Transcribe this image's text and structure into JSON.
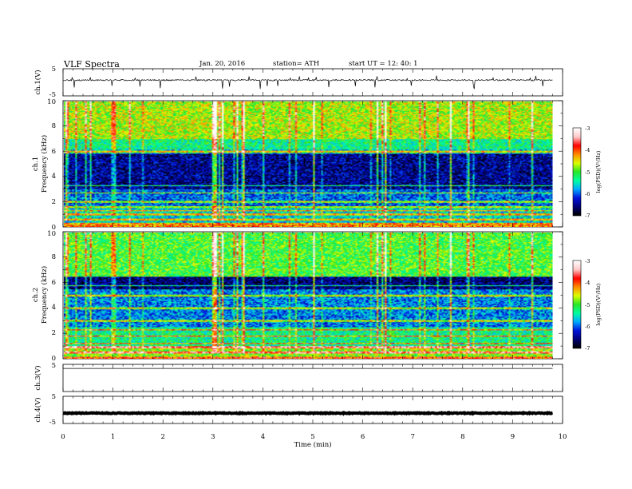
{
  "header": {
    "title": "VLF  Spectra",
    "date": "Jan. 20, 2016",
    "station": "station= ATH",
    "start": "start  UT  =    12: 40: 1"
  },
  "chart_data": [
    {
      "type": "line",
      "name": "ch1-waveform",
      "ylabel": "ch.1(V)",
      "ylim": [
        -5,
        5
      ],
      "y_ticks": [
        "5",
        "-5"
      ],
      "baseline_v": 0.8,
      "noise_v": 0.25,
      "spikes_v": [
        -2.5,
        2.5
      ]
    },
    {
      "type": "heatmap",
      "name": "ch1-spectrogram",
      "ylabel": "ch.1\nFrequency (kHz)",
      "ylabel_lines": [
        "ch.1",
        "Frequency (kHz)"
      ],
      "ylim": [
        0,
        10
      ],
      "y_ticks": [
        "0",
        "2",
        "4",
        "6",
        "8",
        "10"
      ],
      "band_profile_log_psd": [
        {
          "f_khz": [
            0,
            0.3
          ],
          "level": -4.2
        },
        {
          "f_khz": [
            0.3,
            1.5
          ],
          "level": -5.6
        },
        {
          "f_khz": [
            1.5,
            3.0
          ],
          "level": -6.0
        },
        {
          "f_khz": [
            3.0,
            5.8
          ],
          "level": -6.5
        },
        {
          "f_khz": [
            5.8,
            6.2
          ],
          "level": -5.7
        },
        {
          "f_khz": [
            6.2,
            7.0
          ],
          "level": -5.3
        },
        {
          "f_khz": [
            7.0,
            10.0
          ],
          "level": -4.7
        }
      ],
      "tones_khz": [
        0.6,
        1.0,
        1.3,
        1.6,
        2.0,
        2.7,
        3.3,
        6.0
      ],
      "colorbar": {
        "label": "log(PSD)(V²/Hz)",
        "ticks": [
          "-3",
          "-4",
          "-5",
          "-6",
          "-7"
        ],
        "range": [
          -7,
          -3
        ]
      }
    },
    {
      "type": "heatmap",
      "name": "ch2-spectrogram",
      "ylabel": "ch.2\nFrequency (kHz)",
      "ylabel_lines": [
        "ch.2",
        "Frequency (kHz)"
      ],
      "ylim": [
        0,
        10
      ],
      "y_ticks": [
        "0",
        "2",
        "4",
        "6",
        "8",
        "10"
      ],
      "band_profile_log_psd": [
        {
          "f_khz": [
            0,
            0.2
          ],
          "level": -4.0
        },
        {
          "f_khz": [
            0.2,
            1.0
          ],
          "level": -4.8
        },
        {
          "f_khz": [
            1.0,
            2.5
          ],
          "level": -5.3
        },
        {
          "f_khz": [
            2.5,
            5.5
          ],
          "level": -5.9
        },
        {
          "f_khz": [
            5.5,
            6.5
          ],
          "level": -6.6
        },
        {
          "f_khz": [
            6.5,
            10.0
          ],
          "level": -5.0
        }
      ],
      "tones_khz": [
        0.5,
        0.9,
        1.2,
        1.8,
        2.3,
        3.0,
        4.0,
        5.0,
        5.8
      ],
      "colorbar": {
        "label": "log(PSD)(V²/Hz)",
        "ticks": [
          "-3",
          "-4",
          "-5",
          "-6",
          "-7"
        ],
        "range": [
          -7,
          -3
        ]
      }
    },
    {
      "type": "line",
      "name": "ch3-waveform",
      "ylabel": "ch.3(V)",
      "ylim": [
        -5,
        5
      ],
      "y_ticks": [
        "5"
      ],
      "baseline_v": 3.5,
      "noise_v": 0.0
    },
    {
      "type": "line",
      "name": "ch4-waveform",
      "ylabel": "ch.4(V)",
      "ylim": [
        -5,
        5
      ],
      "y_ticks": [
        "5",
        "-5"
      ],
      "baseline_v": -1.2,
      "noise_v": 0.15
    }
  ],
  "x_axis": {
    "label": "Time  (min)",
    "ticks": [
      "0",
      "1",
      "2",
      "3",
      "4",
      "5",
      "6",
      "7",
      "8",
      "9",
      "10"
    ],
    "range": [
      0,
      10
    ],
    "data_end_min": 9.8
  },
  "colormap": [
    "#000000",
    "#000078",
    "#0014dc",
    "#00aaff",
    "#00ffa0",
    "#28e628",
    "#dcff00",
    "#ff8c00",
    "#ff0000",
    "#ffc8c8",
    "#ffffff"
  ]
}
